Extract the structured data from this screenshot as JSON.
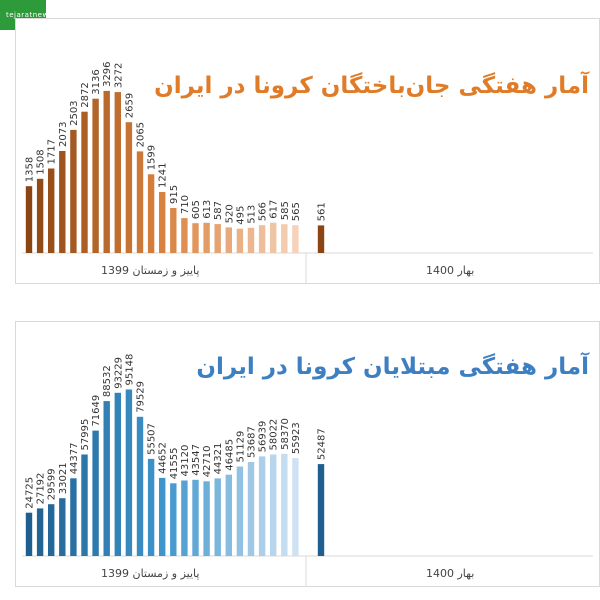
{
  "logo": {
    "text": "tejaratnews"
  },
  "chart_data": [
    {
      "type": "bar",
      "title": "آمار هفتگی جان‌باختگان کرونا در ایران",
      "title_color": "#e07b28",
      "periods": {
        "first": "پاییز و زمستان 1399",
        "second": "بهار 1400"
      },
      "colors": {
        "dark": "#8b4513",
        "mid": "#d9823f",
        "light": "#f5d2b8"
      },
      "values": [
        1358,
        1508,
        1717,
        2073,
        2503,
        2872,
        3136,
        3296,
        3272,
        2659,
        2065,
        1599,
        1241,
        915,
        710,
        605,
        613,
        587,
        520,
        495,
        513,
        566,
        617,
        585,
        565
      ],
      "extra_value": 561,
      "ymax": 3700
    },
    {
      "type": "bar",
      "title": "آمار هفتگی مبتلایان کرونا در ایران",
      "title_color": "#3d7fc1",
      "periods": {
        "first": "پاییز و زمستان 1399",
        "second": "بهار 1400"
      },
      "colors": {
        "dark": "#1f5f8f",
        "mid": "#3d95cc",
        "light": "#cfe2f3"
      },
      "values": [
        24725,
        27192,
        29599,
        33021,
        44377,
        57995,
        71649,
        88532,
        93229,
        95148,
        79529,
        55507,
        44652,
        41555,
        43120,
        43547,
        42710,
        44321,
        46485,
        51129,
        53687,
        56939,
        58022,
        58370,
        55923
      ],
      "extra_value": 52487,
      "ymax": 104000
    }
  ]
}
